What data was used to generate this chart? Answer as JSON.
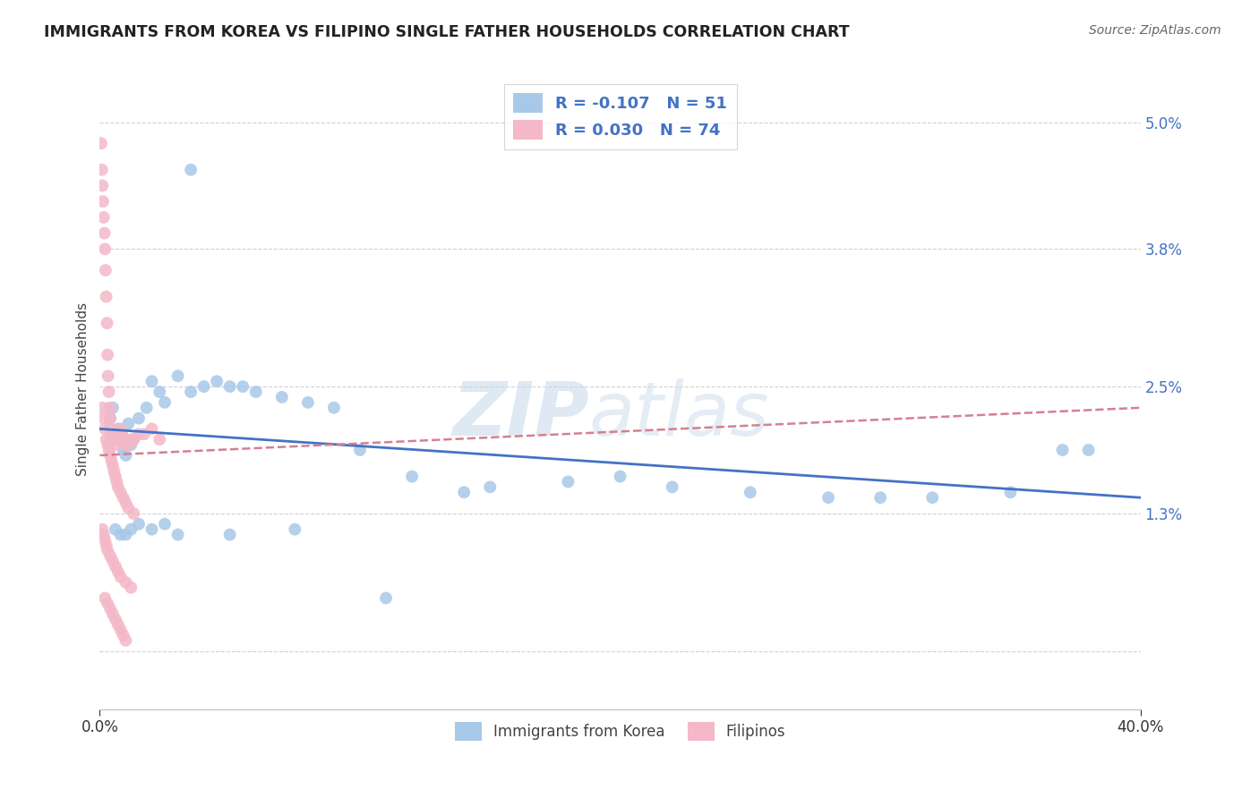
{
  "title": "IMMIGRANTS FROM KOREA VS FILIPINO SINGLE FATHER HOUSEHOLDS CORRELATION CHART",
  "source": "Source: ZipAtlas.com",
  "ylabel": "Single Father Households",
  "xmin": 0.0,
  "xmax": 40.0,
  "ymin": -0.55,
  "ymax": 5.5,
  "watermark_zip": "ZIP",
  "watermark_atlas": "atlas",
  "legend_r1": "R = -0.107",
  "legend_n1": "N = 51",
  "legend_r2": "R = 0.030",
  "legend_n2": "N = 74",
  "color_korea": "#a8c8e8",
  "color_filipinos": "#f4b8c8",
  "color_korea_line": "#4472c4",
  "color_filipinos_line": "#d48090",
  "background_color": "#ffffff",
  "ytick_vals": [
    0.0,
    1.3,
    2.5,
    3.8,
    5.0
  ],
  "ytick_labels": [
    "",
    "1.3%",
    "2.5%",
    "3.8%",
    "5.0%"
  ],
  "korea_x": [
    0.4,
    0.5,
    0.6,
    0.7,
    0.8,
    0.9,
    1.0,
    1.1,
    1.2,
    1.3,
    1.5,
    1.8,
    2.0,
    2.3,
    2.5,
    3.0,
    3.5,
    4.0,
    4.5,
    5.0,
    5.5,
    6.0,
    7.0,
    8.0,
    9.0,
    10.0,
    12.0,
    14.0,
    15.0,
    18.0,
    20.0,
    22.0,
    25.0,
    28.0,
    30.0,
    32.0,
    35.0,
    37.0,
    3.5,
    7.5,
    11.0,
    0.6,
    0.8,
    1.0,
    1.2,
    1.5,
    2.0,
    2.5,
    3.0,
    5.0,
    38.0
  ],
  "korea_y": [
    2.2,
    2.3,
    2.0,
    2.1,
    2.05,
    1.9,
    1.85,
    2.15,
    1.95,
    2.0,
    2.2,
    2.3,
    2.55,
    2.45,
    2.35,
    2.6,
    2.45,
    2.5,
    2.55,
    2.5,
    2.5,
    2.45,
    2.4,
    2.35,
    2.3,
    1.9,
    1.65,
    1.5,
    1.55,
    1.6,
    1.65,
    1.55,
    1.5,
    1.45,
    1.45,
    1.45,
    1.5,
    1.9,
    4.55,
    1.15,
    0.5,
    1.15,
    1.1,
    1.1,
    1.15,
    1.2,
    1.15,
    1.2,
    1.1,
    1.1,
    1.9
  ],
  "filipinos_x": [
    0.05,
    0.08,
    0.1,
    0.12,
    0.15,
    0.18,
    0.2,
    0.22,
    0.25,
    0.28,
    0.3,
    0.32,
    0.35,
    0.38,
    0.4,
    0.42,
    0.45,
    0.5,
    0.55,
    0.6,
    0.65,
    0.7,
    0.75,
    0.8,
    0.85,
    0.9,
    0.95,
    1.0,
    1.1,
    1.2,
    1.3,
    1.5,
    1.7,
    2.0,
    2.3,
    0.1,
    0.15,
    0.2,
    0.25,
    0.3,
    0.35,
    0.4,
    0.45,
    0.5,
    0.55,
    0.6,
    0.65,
    0.7,
    0.8,
    0.9,
    1.0,
    1.1,
    1.3,
    0.1,
    0.15,
    0.2,
    0.25,
    0.3,
    0.4,
    0.5,
    0.6,
    0.7,
    0.8,
    1.0,
    1.2,
    0.2,
    0.3,
    0.4,
    0.5,
    0.6,
    0.7,
    0.8,
    0.9,
    1.0
  ],
  "filipinos_y": [
    4.8,
    4.55,
    4.4,
    4.25,
    4.1,
    3.95,
    3.8,
    3.6,
    3.35,
    3.1,
    2.8,
    2.6,
    2.45,
    2.3,
    2.2,
    2.1,
    2.05,
    2.0,
    1.95,
    2.0,
    2.0,
    2.05,
    2.05,
    2.1,
    2.05,
    2.0,
    1.95,
    2.0,
    1.95,
    2.0,
    2.0,
    2.05,
    2.05,
    2.1,
    2.0,
    2.3,
    2.2,
    2.1,
    2.0,
    1.95,
    1.9,
    1.85,
    1.8,
    1.75,
    1.7,
    1.65,
    1.6,
    1.55,
    1.5,
    1.45,
    1.4,
    1.35,
    1.3,
    1.15,
    1.1,
    1.05,
    1.0,
    0.95,
    0.9,
    0.85,
    0.8,
    0.75,
    0.7,
    0.65,
    0.6,
    0.5,
    0.45,
    0.4,
    0.35,
    0.3,
    0.25,
    0.2,
    0.15,
    0.1
  ]
}
